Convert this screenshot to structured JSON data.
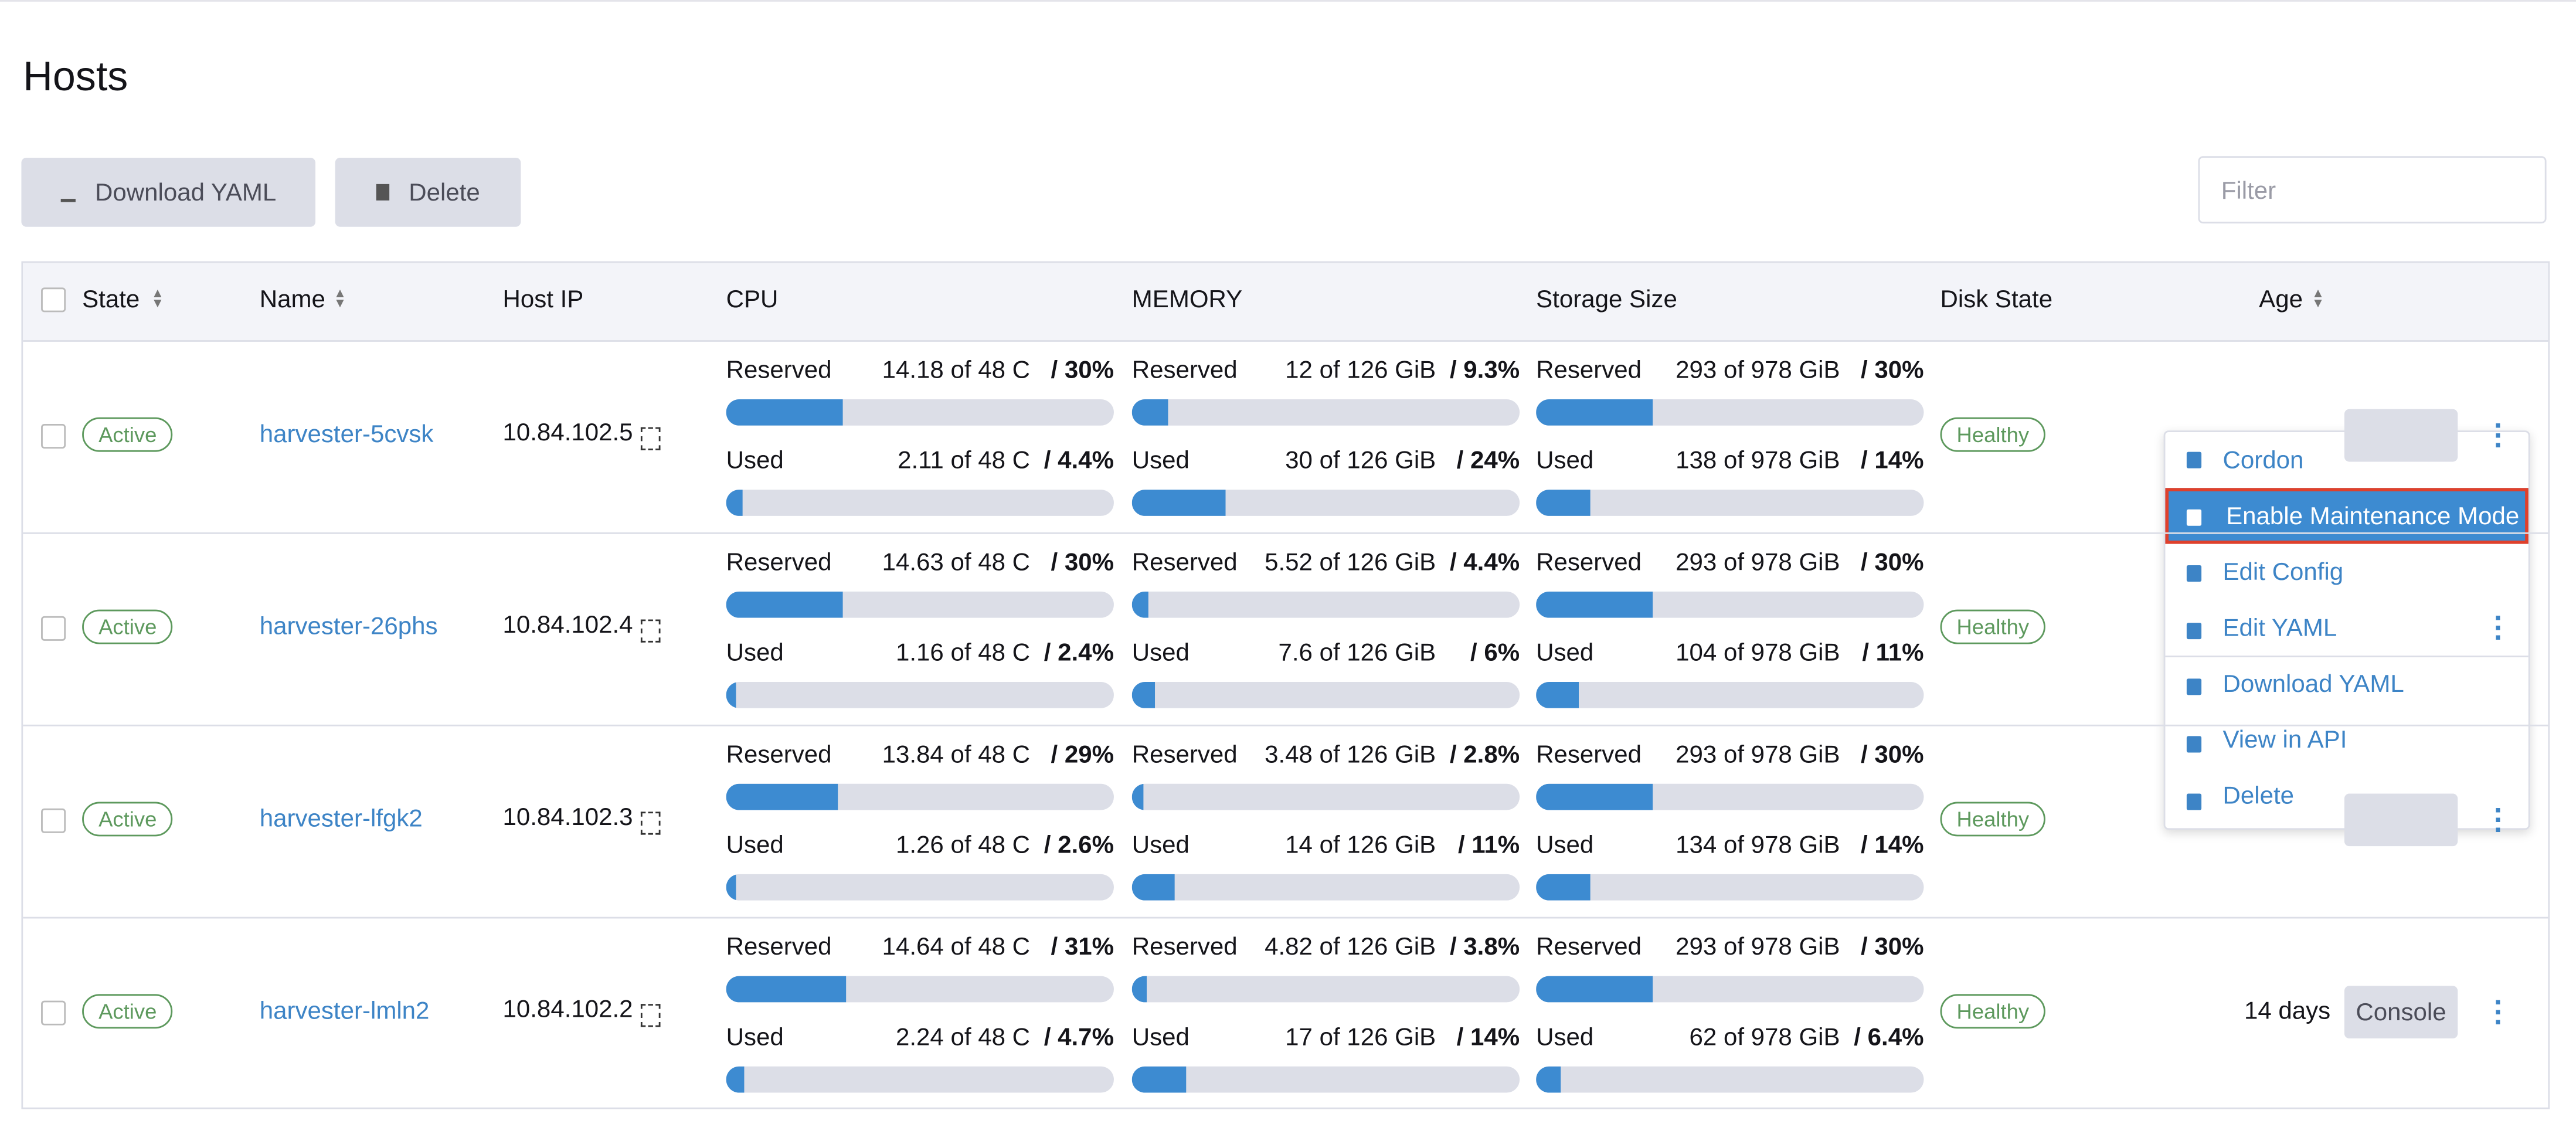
{
  "header": {
    "title": "Hosts"
  },
  "toolbar": {
    "buttons": [
      "Download YAML",
      "Delete"
    ],
    "filter_placeholder": "Filter"
  },
  "table": {
    "columns": [
      "State",
      "Name",
      "Host IP",
      "CPU",
      "MEMORY",
      "Storage Size",
      "Disk State",
      "Age"
    ],
    "rows": [
      {
        "state": "Active",
        "name": "harvester-5cvsk",
        "ip": "10.84.102.5",
        "disk_state": "Healthy",
        "cpu": [
          {
            "label": "Reserved",
            "amount": "14.18 of 48 C",
            "percent": 30,
            "percent_label": "/ 30%"
          },
          {
            "label": "Used",
            "amount": "2.11 of 48 C",
            "percent": 4.4,
            "percent_label": "/ 4.4%"
          }
        ],
        "memory": [
          {
            "label": "Reserved",
            "amount": "12 of 126 GiB",
            "percent": 9.3,
            "percent_label": "/ 9.3%"
          },
          {
            "label": "Used",
            "amount": "30 of 126 GiB",
            "percent": 24,
            "percent_label": "/ 24%"
          }
        ],
        "storage": [
          {
            "label": "Reserved",
            "amount": "293 of 978 GiB",
            "percent": 30,
            "percent_label": "/ 30%"
          },
          {
            "label": "Used",
            "amount": "138 of 978 GiB",
            "percent": 14,
            "percent_label": "/ 14%"
          }
        ]
      },
      {
        "state": "Active",
        "name": "harvester-26phs",
        "ip": "10.84.102.4",
        "disk_state": "Healthy",
        "cpu": [
          {
            "label": "Reserved",
            "amount": "14.63 of 48 C",
            "percent": 30,
            "percent_label": "/ 30%"
          },
          {
            "label": "Used",
            "amount": "1.16 of 48 C",
            "percent": 2.4,
            "percent_label": "/ 2.4%"
          }
        ],
        "memory": [
          {
            "label": "Reserved",
            "amount": "5.52 of 126 GiB",
            "percent": 4.4,
            "percent_label": "/ 4.4%"
          },
          {
            "label": "Used",
            "amount": "7.6 of 126 GiB",
            "percent": 6,
            "percent_label": "/ 6%"
          }
        ],
        "storage": [
          {
            "label": "Reserved",
            "amount": "293 of 978 GiB",
            "percent": 30,
            "percent_label": "/ 30%"
          },
          {
            "label": "Used",
            "amount": "104 of 978 GiB",
            "percent": 11,
            "percent_label": "/ 11%"
          }
        ]
      },
      {
        "state": "Active",
        "name": "harvester-lfgk2",
        "ip": "10.84.102.3",
        "disk_state": "Healthy",
        "cpu": [
          {
            "label": "Reserved",
            "amount": "13.84 of 48 C",
            "percent": 29,
            "percent_label": "/ 29%"
          },
          {
            "label": "Used",
            "amount": "1.26 of 48 C",
            "percent": 2.6,
            "percent_label": "/ 2.6%"
          }
        ],
        "memory": [
          {
            "label": "Reserved",
            "amount": "3.48 of 126 GiB",
            "percent": 2.8,
            "percent_label": "/ 2.8%"
          },
          {
            "label": "Used",
            "amount": "14 of 126 GiB",
            "percent": 11,
            "percent_label": "/ 11%"
          }
        ],
        "storage": [
          {
            "label": "Reserved",
            "amount": "293 of 978 GiB",
            "percent": 30,
            "percent_label": "/ 30%"
          },
          {
            "label": "Used",
            "amount": "134 of 978 GiB",
            "percent": 14,
            "percent_label": "/ 14%"
          }
        ]
      },
      {
        "state": "Active",
        "name": "harvester-lmln2",
        "ip": "10.84.102.2",
        "disk_state": "Healthy",
        "age": "14 days",
        "action": "Console",
        "cpu": [
          {
            "label": "Reserved",
            "amount": "14.64 of 48 C",
            "percent": 31,
            "percent_label": "/ 31%"
          },
          {
            "label": "Used",
            "amount": "2.24 of 48 C",
            "percent": 4.7,
            "percent_label": "/ 4.7%"
          }
        ],
        "memory": [
          {
            "label": "Reserved",
            "amount": "4.82 of 126 GiB",
            "percent": 3.8,
            "percent_label": "/ 3.8%"
          },
          {
            "label": "Used",
            "amount": "17 of 126 GiB",
            "percent": 14,
            "percent_label": "/ 14%"
          }
        ],
        "storage": [
          {
            "label": "Reserved",
            "amount": "293 of 978 GiB",
            "percent": 30,
            "percent_label": "/ 30%"
          },
          {
            "label": "Used",
            "amount": "62 of 978 GiB",
            "percent": 6.4,
            "percent_label": "/ 6.4%"
          }
        ]
      }
    ]
  },
  "menu": {
    "items": [
      "Cordon",
      "Enable Maintenance Mode",
      "Edit Config",
      "Edit YAML",
      "Download YAML",
      "View in API",
      "Delete"
    ]
  }
}
